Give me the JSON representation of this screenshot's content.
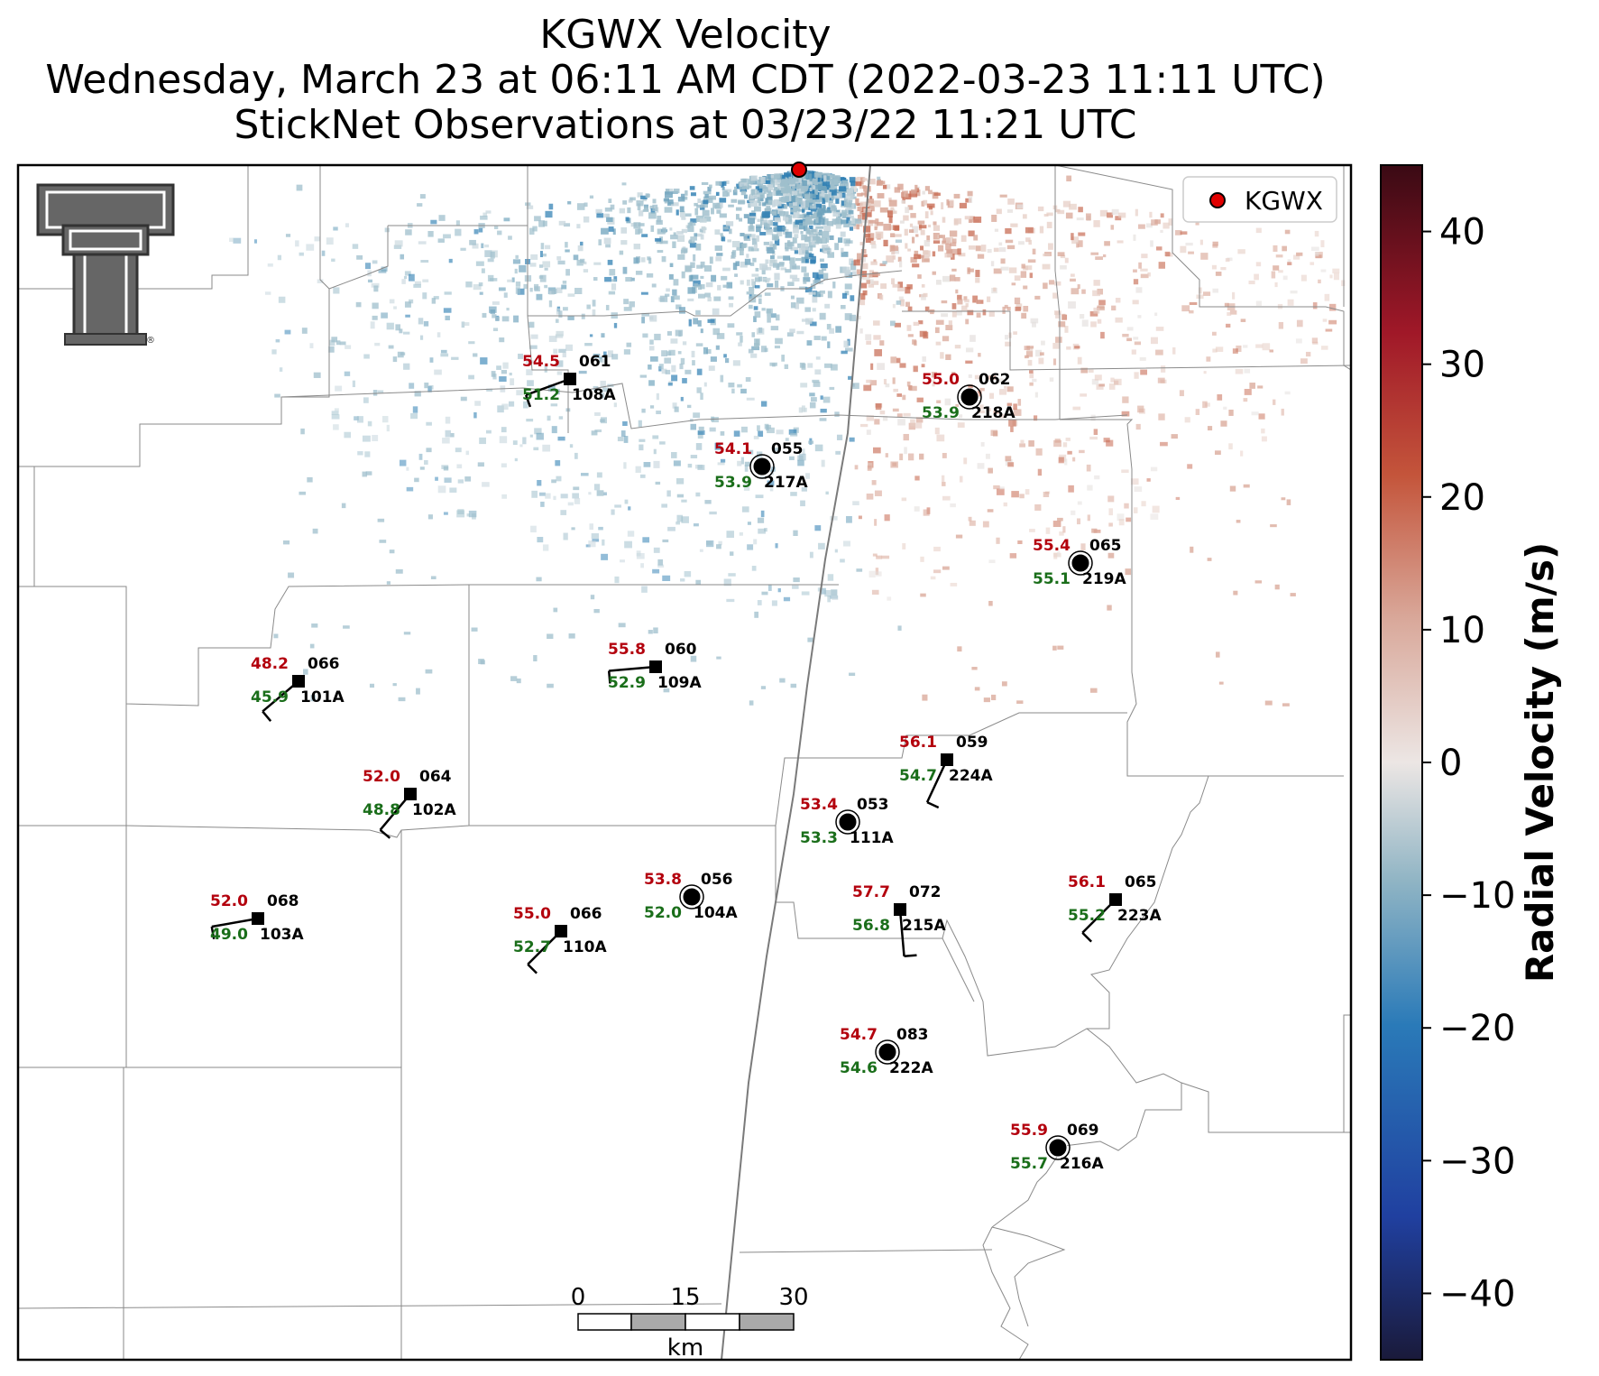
{
  "title": {
    "line1": "KGWX Velocity",
    "line2": "Wednesday, March 23 at 06:11 AM CDT (2022-03-23 11:11 UTC)",
    "line3": "StickNet Observations at 03/23/22 11:21 UTC"
  },
  "legend": {
    "label": "KGWX",
    "marker_color": "#e00000"
  },
  "logo": {
    "icon": "texas-tech-double-t-logo"
  },
  "colorbar": {
    "label": "Radial Velocity (m/s)",
    "ticks": [
      "40",
      "30",
      "20",
      "10",
      "0",
      "−10",
      "−20",
      "−30",
      "−40"
    ],
    "tick_values": [
      40,
      30,
      20,
      10,
      0,
      -10,
      -20,
      -30,
      -40
    ],
    "min": -45,
    "max": 45,
    "colormap": "radial-velocity-diverging",
    "colors": {
      "neg_max": "#1a1a3a",
      "neg_mid": "#2a7ab8",
      "neg_low": "#8fb4c4",
      "zero": "#ece6e4",
      "pos_low": "#d9a89a",
      "pos_mid": "#c4553b",
      "pos_max": "#3a0a14"
    }
  },
  "scale_bar": {
    "labels": [
      "0",
      "15",
      "30"
    ],
    "unit": "km"
  },
  "stations": [
    {
      "temp": "54.5",
      "dew": "51.2",
      "wind_dir": "061",
      "id": "108A",
      "marker": "square",
      "wind_from_deg": 250,
      "wind_speed": 10
    },
    {
      "temp": "55.0",
      "dew": "53.9",
      "wind_dir": "062",
      "id": "218A",
      "marker": "circle",
      "wind_from_deg": 0,
      "wind_speed": 0
    },
    {
      "temp": "54.1",
      "dew": "53.9",
      "wind_dir": "055",
      "id": "217A",
      "marker": "circle",
      "wind_from_deg": 0,
      "wind_speed": 0
    },
    {
      "temp": "55.4",
      "dew": "55.1",
      "wind_dir": "065",
      "id": "219A",
      "marker": "circle",
      "wind_from_deg": 0,
      "wind_speed": 0
    },
    {
      "temp": "48.2",
      "dew": "45.9",
      "wind_dir": "066",
      "id": "101A",
      "marker": "square",
      "wind_from_deg": 230,
      "wind_speed": 10
    },
    {
      "temp": "55.8",
      "dew": "52.9",
      "wind_dir": "060",
      "id": "109A",
      "marker": "square",
      "wind_from_deg": 265,
      "wind_speed": 10
    },
    {
      "temp": "56.1",
      "dew": "54.7",
      "wind_dir": "059",
      "id": "224A",
      "marker": "square",
      "wind_from_deg": 205,
      "wind_speed": 10
    },
    {
      "temp": "52.0",
      "dew": "48.8",
      "wind_dir": "064",
      "id": "102A",
      "marker": "square",
      "wind_from_deg": 220,
      "wind_speed": 10
    },
    {
      "temp": "53.4",
      "dew": "53.3",
      "wind_dir": "053",
      "id": "111A",
      "marker": "circle",
      "wind_from_deg": 0,
      "wind_speed": 0
    },
    {
      "temp": "53.8",
      "dew": "52.0",
      "wind_dir": "056",
      "id": "104A",
      "marker": "circle",
      "wind_from_deg": 0,
      "wind_speed": 0
    },
    {
      "temp": "52.0",
      "dew": "49.0",
      "wind_dir": "068",
      "id": "103A",
      "marker": "square",
      "wind_from_deg": 260,
      "wind_speed": 10
    },
    {
      "temp": "55.0",
      "dew": "52.7",
      "wind_dir": "066",
      "id": "110A",
      "marker": "square",
      "wind_from_deg": 225,
      "wind_speed": 10
    },
    {
      "temp": "57.7",
      "dew": "56.8",
      "wind_dir": "072",
      "id": "215A",
      "marker": "square",
      "wind_from_deg": 175,
      "wind_speed": 10
    },
    {
      "temp": "56.1",
      "dew": "55.2",
      "wind_dir": "065",
      "id": "223A",
      "marker": "square",
      "wind_from_deg": 225,
      "wind_speed": 10
    },
    {
      "temp": "54.7",
      "dew": "54.6",
      "wind_dir": "083",
      "id": "222A",
      "marker": "circle",
      "wind_from_deg": 0,
      "wind_speed": 0
    },
    {
      "temp": "55.9",
      "dew": "55.7",
      "wind_dir": "069",
      "id": "216A",
      "marker": "circle",
      "wind_from_deg": 0,
      "wind_speed": 0
    }
  ]
}
